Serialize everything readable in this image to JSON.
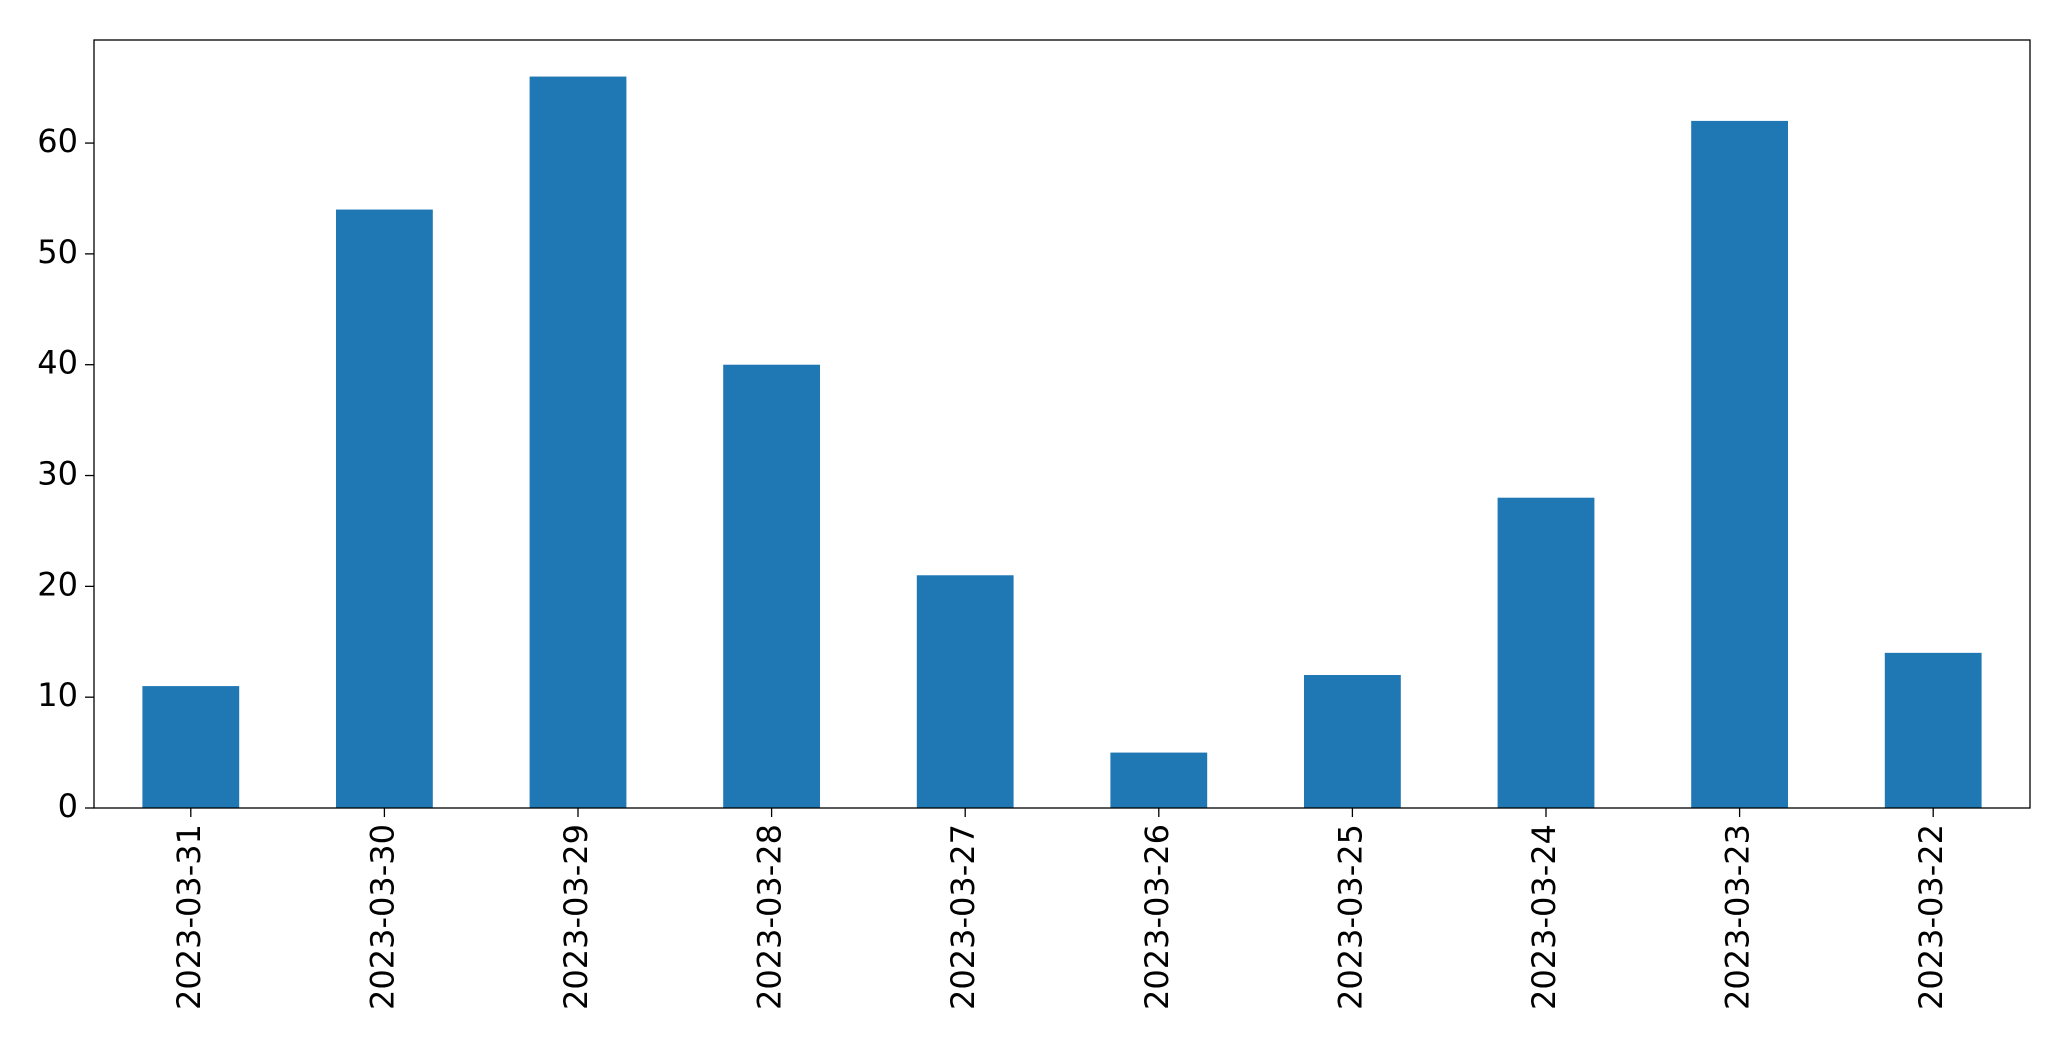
{
  "chart_data": {
    "type": "bar",
    "categories": [
      "2023-03-31",
      "2023-03-30",
      "2023-03-29",
      "2023-03-28",
      "2023-03-27",
      "2023-03-26",
      "2023-03-25",
      "2023-03-24",
      "2023-03-23",
      "2023-03-22"
    ],
    "values": [
      11,
      54,
      66,
      40,
      21,
      5,
      12,
      28,
      62,
      14
    ],
    "color": "#1f77b4",
    "ylim": [
      0,
      69.3
    ],
    "yticks": [
      0,
      10,
      20,
      30,
      40,
      50,
      60
    ],
    "grid": false
  }
}
